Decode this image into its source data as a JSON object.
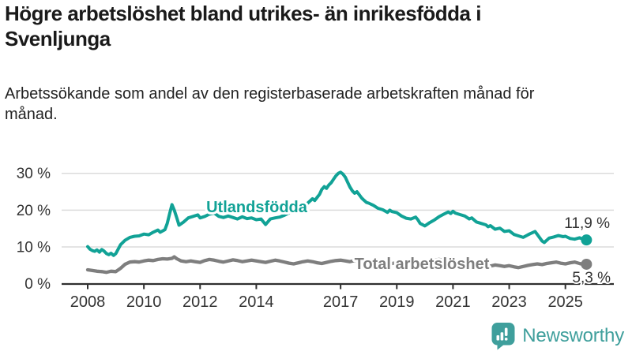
{
  "header": {
    "title": "Högre arbetslöshet bland utrikes- än inrikesfödda i Svenljunga",
    "subtitle": "Arbetssökande som andel av den registerbaserade arbetskraften månad för månad."
  },
  "colors": {
    "series_foreign": "#11a296",
    "series_total": "#7e7e7e",
    "grid": "#dbdbdb",
    "axis": "#2f2f2f",
    "tick_text": "#333333",
    "value_text": "#333333",
    "brand": "#3f9f9c"
  },
  "chart_data": {
    "type": "line",
    "title": "Högre arbetslöshet bland utrikes- än inrikesfödda i Svenljunga",
    "subtitle": "Arbetssökande som andel av den registerbaserade arbetskraften månad för månad.",
    "xlabel": "",
    "ylabel": "",
    "xlim": [
      2007.6,
      2026.1
    ],
    "ylim": [
      0,
      32
    ],
    "grid": "horizontal",
    "legend_position": "inline-labels",
    "x_ticks": [
      2008,
      2010,
      2012,
      2014,
      2017,
      2019,
      2021,
      2023,
      2025
    ],
    "y_ticks": [
      {
        "value": 0,
        "label": "0 %"
      },
      {
        "value": 10,
        "label": "10 %"
      },
      {
        "value": 20,
        "label": "20 %"
      },
      {
        "value": 30,
        "label": "30 %"
      }
    ],
    "series": [
      {
        "name": "Utlandsfödda",
        "end_label": "11,9 %",
        "end_value": 11.9,
        "color": "#11a296",
        "points": [
          [
            2008.0,
            10.1
          ],
          [
            2008.08,
            9.4
          ],
          [
            2008.17,
            9.0
          ],
          [
            2008.25,
            8.8
          ],
          [
            2008.33,
            9.2
          ],
          [
            2008.42,
            8.6
          ],
          [
            2008.5,
            9.3
          ],
          [
            2008.58,
            8.9
          ],
          [
            2008.67,
            8.2
          ],
          [
            2008.75,
            7.9
          ],
          [
            2008.83,
            8.3
          ],
          [
            2008.92,
            7.7
          ],
          [
            2009.0,
            8.2
          ],
          [
            2009.17,
            10.6
          ],
          [
            2009.33,
            11.8
          ],
          [
            2009.5,
            12.6
          ],
          [
            2009.67,
            12.9
          ],
          [
            2009.83,
            13.0
          ],
          [
            2010.0,
            13.5
          ],
          [
            2010.17,
            13.3
          ],
          [
            2010.33,
            14.0
          ],
          [
            2010.5,
            14.6
          ],
          [
            2010.58,
            14.0
          ],
          [
            2010.75,
            14.7
          ],
          [
            2010.83,
            16.4
          ],
          [
            2010.92,
            19.2
          ],
          [
            2011.0,
            21.5
          ],
          [
            2011.08,
            20.0
          ],
          [
            2011.17,
            17.9
          ],
          [
            2011.25,
            15.9
          ],
          [
            2011.42,
            16.8
          ],
          [
            2011.58,
            17.9
          ],
          [
            2011.75,
            18.3
          ],
          [
            2011.92,
            18.7
          ],
          [
            2012.0,
            17.9
          ],
          [
            2012.17,
            18.3
          ],
          [
            2012.33,
            18.9
          ],
          [
            2012.5,
            19.2
          ],
          [
            2012.67,
            18.3
          ],
          [
            2012.83,
            18.0
          ],
          [
            2013.0,
            18.4
          ],
          [
            2013.17,
            18.0
          ],
          [
            2013.33,
            17.6
          ],
          [
            2013.5,
            18.2
          ],
          [
            2013.67,
            17.7
          ],
          [
            2013.83,
            17.9
          ],
          [
            2014.0,
            17.4
          ],
          [
            2014.17,
            17.6
          ],
          [
            2014.33,
            16.1
          ],
          [
            2014.5,
            17.6
          ],
          [
            2014.67,
            17.9
          ],
          [
            2014.83,
            18.1
          ],
          [
            2015.0,
            18.6
          ],
          [
            2015.17,
            19.3
          ],
          [
            2015.33,
            19.8
          ],
          [
            2015.5,
            20.4
          ],
          [
            2015.67,
            21.2
          ],
          [
            2015.83,
            21.9
          ],
          [
            2016.0,
            23.1
          ],
          [
            2016.08,
            22.6
          ],
          [
            2016.17,
            23.5
          ],
          [
            2016.25,
            24.3
          ],
          [
            2016.33,
            25.6
          ],
          [
            2016.42,
            26.4
          ],
          [
            2016.5,
            25.9
          ],
          [
            2016.58,
            26.8
          ],
          [
            2016.67,
            27.5
          ],
          [
            2016.75,
            28.4
          ],
          [
            2016.83,
            29.3
          ],
          [
            2016.92,
            30.0
          ],
          [
            2017.0,
            30.3
          ],
          [
            2017.08,
            29.8
          ],
          [
            2017.17,
            28.9
          ],
          [
            2017.25,
            27.6
          ],
          [
            2017.33,
            26.3
          ],
          [
            2017.42,
            25.2
          ],
          [
            2017.5,
            24.6
          ],
          [
            2017.58,
            25.0
          ],
          [
            2017.67,
            24.1
          ],
          [
            2017.75,
            23.3
          ],
          [
            2017.83,
            22.7
          ],
          [
            2017.92,
            22.1
          ],
          [
            2018.0,
            21.9
          ],
          [
            2018.17,
            21.3
          ],
          [
            2018.33,
            20.5
          ],
          [
            2018.5,
            20.1
          ],
          [
            2018.67,
            19.4
          ],
          [
            2018.75,
            20.0
          ],
          [
            2018.83,
            19.6
          ],
          [
            2019.0,
            19.3
          ],
          [
            2019.17,
            18.4
          ],
          [
            2019.33,
            17.8
          ],
          [
            2019.5,
            17.6
          ],
          [
            2019.67,
            18.1
          ],
          [
            2019.75,
            17.4
          ],
          [
            2019.83,
            16.4
          ],
          [
            2020.0,
            15.7
          ],
          [
            2020.17,
            16.6
          ],
          [
            2020.33,
            17.3
          ],
          [
            2020.5,
            18.2
          ],
          [
            2020.67,
            18.9
          ],
          [
            2020.83,
            19.5
          ],
          [
            2020.92,
            19.1
          ],
          [
            2021.0,
            19.7
          ],
          [
            2021.08,
            19.2
          ],
          [
            2021.25,
            18.8
          ],
          [
            2021.42,
            18.4
          ],
          [
            2021.58,
            17.6
          ],
          [
            2021.67,
            17.9
          ],
          [
            2021.83,
            16.8
          ],
          [
            2022.0,
            16.4
          ],
          [
            2022.17,
            16.0
          ],
          [
            2022.25,
            15.5
          ],
          [
            2022.33,
            15.8
          ],
          [
            2022.5,
            14.8
          ],
          [
            2022.67,
            15.1
          ],
          [
            2022.83,
            14.2
          ],
          [
            2023.0,
            14.4
          ],
          [
            2023.17,
            13.4
          ],
          [
            2023.33,
            13.0
          ],
          [
            2023.5,
            12.6
          ],
          [
            2023.67,
            13.3
          ],
          [
            2023.75,
            13.6
          ],
          [
            2023.92,
            14.2
          ],
          [
            2024.0,
            13.4
          ],
          [
            2024.17,
            11.6
          ],
          [
            2024.25,
            11.2
          ],
          [
            2024.42,
            12.4
          ],
          [
            2024.58,
            12.7
          ],
          [
            2024.75,
            13.1
          ],
          [
            2024.92,
            12.8
          ],
          [
            2025.0,
            12.9
          ],
          [
            2025.17,
            12.3
          ],
          [
            2025.33,
            12.1
          ],
          [
            2025.5,
            12.5
          ],
          [
            2025.67,
            12.0
          ],
          [
            2025.75,
            11.9
          ]
        ]
      },
      {
        "name": "Total arbetslöshet",
        "end_label": "5,3 %",
        "end_value": 5.3,
        "color": "#7e7e7e",
        "points": [
          [
            2008.0,
            3.8
          ],
          [
            2008.17,
            3.6
          ],
          [
            2008.33,
            3.4
          ],
          [
            2008.5,
            3.3
          ],
          [
            2008.67,
            3.1
          ],
          [
            2008.83,
            3.4
          ],
          [
            2009.0,
            3.3
          ],
          [
            2009.17,
            4.2
          ],
          [
            2009.33,
            5.3
          ],
          [
            2009.5,
            5.9
          ],
          [
            2009.67,
            6.0
          ],
          [
            2009.83,
            5.9
          ],
          [
            2010.0,
            6.2
          ],
          [
            2010.17,
            6.4
          ],
          [
            2010.33,
            6.3
          ],
          [
            2010.5,
            6.6
          ],
          [
            2010.67,
            6.8
          ],
          [
            2010.83,
            6.7
          ],
          [
            2011.0,
            6.9
          ],
          [
            2011.08,
            7.3
          ],
          [
            2011.17,
            6.8
          ],
          [
            2011.33,
            6.2
          ],
          [
            2011.5,
            6.0
          ],
          [
            2011.67,
            6.2
          ],
          [
            2011.83,
            6.0
          ],
          [
            2012.0,
            5.8
          ],
          [
            2012.17,
            6.3
          ],
          [
            2012.33,
            6.6
          ],
          [
            2012.5,
            6.4
          ],
          [
            2012.67,
            6.1
          ],
          [
            2012.83,
            5.9
          ],
          [
            2013.0,
            6.2
          ],
          [
            2013.17,
            6.5
          ],
          [
            2013.33,
            6.3
          ],
          [
            2013.5,
            6.0
          ],
          [
            2013.67,
            6.2
          ],
          [
            2013.83,
            6.4
          ],
          [
            2014.0,
            6.2
          ],
          [
            2014.17,
            6.0
          ],
          [
            2014.33,
            5.8
          ],
          [
            2014.5,
            6.1
          ],
          [
            2014.67,
            6.4
          ],
          [
            2014.83,
            6.2
          ],
          [
            2015.0,
            5.9
          ],
          [
            2015.17,
            5.6
          ],
          [
            2015.33,
            5.4
          ],
          [
            2015.5,
            5.7
          ],
          [
            2015.67,
            6.0
          ],
          [
            2015.83,
            6.2
          ],
          [
            2016.0,
            6.0
          ],
          [
            2016.17,
            5.7
          ],
          [
            2016.33,
            5.5
          ],
          [
            2016.5,
            5.8
          ],
          [
            2016.67,
            6.1
          ],
          [
            2016.83,
            6.3
          ],
          [
            2017.0,
            6.4
          ],
          [
            2017.17,
            6.2
          ],
          [
            2017.33,
            6.0
          ],
          [
            2017.5,
            6.3
          ],
          [
            2017.67,
            6.1
          ],
          [
            2017.83,
            5.9
          ],
          [
            2018.0,
            6.1
          ],
          [
            2018.17,
            5.8
          ],
          [
            2018.33,
            5.6
          ],
          [
            2018.5,
            5.9
          ],
          [
            2018.67,
            5.7
          ],
          [
            2018.83,
            5.5
          ],
          [
            2019.0,
            5.7
          ],
          [
            2019.17,
            5.4
          ],
          [
            2019.33,
            5.6
          ],
          [
            2019.5,
            5.8
          ],
          [
            2019.67,
            5.5
          ],
          [
            2019.83,
            5.3
          ],
          [
            2020.0,
            5.5
          ],
          [
            2020.17,
            6.0
          ],
          [
            2020.33,
            6.4
          ],
          [
            2020.5,
            6.6
          ],
          [
            2020.67,
            6.4
          ],
          [
            2020.83,
            6.2
          ],
          [
            2021.0,
            6.4
          ],
          [
            2021.17,
            6.1
          ],
          [
            2021.33,
            5.8
          ],
          [
            2021.5,
            5.5
          ],
          [
            2021.67,
            5.3
          ],
          [
            2021.83,
            5.1
          ],
          [
            2022.0,
            5.3
          ],
          [
            2022.17,
            5.0
          ],
          [
            2022.33,
            4.8
          ],
          [
            2022.5,
            5.1
          ],
          [
            2022.67,
            4.9
          ],
          [
            2022.83,
            4.7
          ],
          [
            2023.0,
            4.9
          ],
          [
            2023.17,
            4.6
          ],
          [
            2023.33,
            4.4
          ],
          [
            2023.5,
            4.7
          ],
          [
            2023.67,
            5.0
          ],
          [
            2023.83,
            5.2
          ],
          [
            2024.0,
            5.4
          ],
          [
            2024.17,
            5.2
          ],
          [
            2024.33,
            5.5
          ],
          [
            2024.5,
            5.7
          ],
          [
            2024.67,
            5.9
          ],
          [
            2024.83,
            5.6
          ],
          [
            2025.0,
            5.4
          ],
          [
            2025.17,
            5.7
          ],
          [
            2025.33,
            5.9
          ],
          [
            2025.5,
            5.5
          ],
          [
            2025.67,
            5.2
          ],
          [
            2025.75,
            5.3
          ]
        ]
      }
    ]
  },
  "footer": {
    "brand_name": "Newsworthy",
    "logo_icon": "bar-chart-speech-bubble-icon"
  }
}
